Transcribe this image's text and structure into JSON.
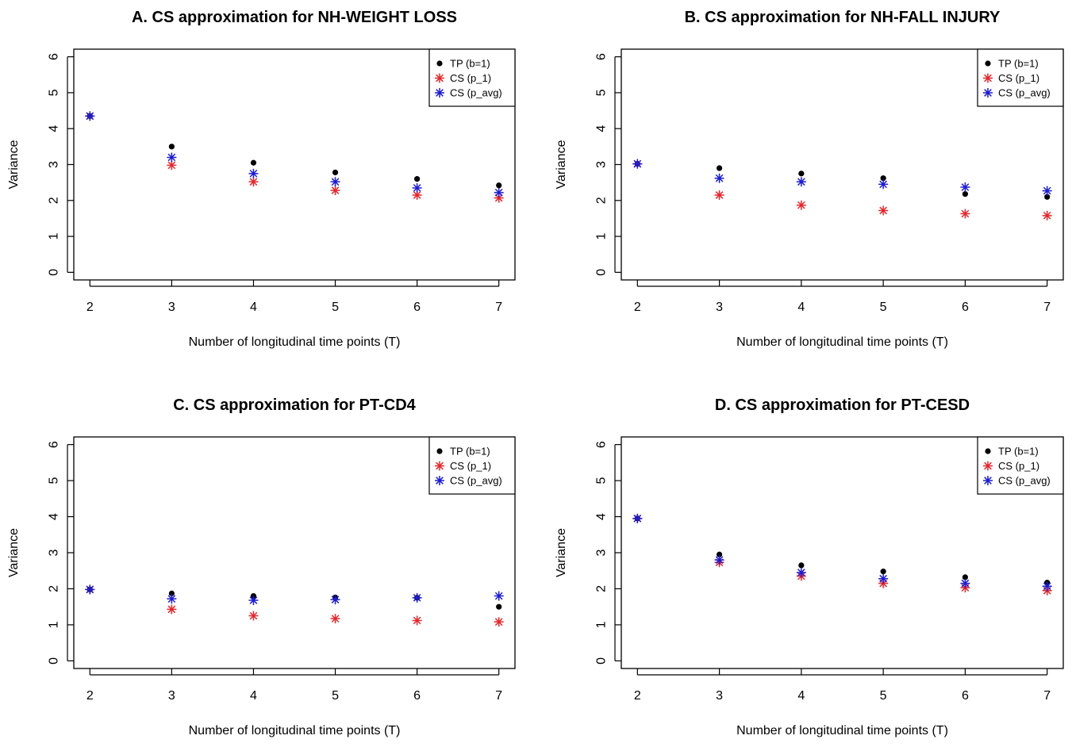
{
  "figure": {
    "colors": {
      "tp": "#000000",
      "cs_p1": "#e8262b",
      "cs_pavg": "#1c1cd6",
      "frame": "#000000"
    }
  },
  "chart_data": [
    {
      "type": "scatter",
      "title": "A. CS approximation for NH-WEIGHT LOSS",
      "xlabel": "Number of longitudinal time points (T)",
      "ylabel": "Variance",
      "x": [
        2,
        3,
        4,
        5,
        6,
        7
      ],
      "xticks": [
        "2",
        "3",
        "4",
        "5",
        "6",
        "7"
      ],
      "yticks": [
        "0",
        "1",
        "2",
        "3",
        "4",
        "5",
        "6"
      ],
      "xlim": [
        2,
        7
      ],
      "ylim": [
        0,
        6
      ],
      "grid": false,
      "legend_position": "top-right",
      "series": [
        {
          "name": "TP (b=1)",
          "marker": "dot",
          "values": [
            4.35,
            3.5,
            3.05,
            2.78,
            2.6,
            2.42
          ]
        },
        {
          "name": "CS (p_1)",
          "marker": "asterisk",
          "values": [
            4.35,
            2.98,
            2.52,
            2.28,
            2.15,
            2.07
          ]
        },
        {
          "name": "CS (p_avg)",
          "marker": "asterisk",
          "values": [
            4.35,
            3.2,
            2.75,
            2.52,
            2.35,
            2.22
          ]
        }
      ]
    },
    {
      "type": "scatter",
      "title": "B. CS approximation for NH-FALL INJURY",
      "xlabel": "Number of longitudinal time points (T)",
      "ylabel": "Variance",
      "x": [
        2,
        3,
        4,
        5,
        6,
        7
      ],
      "xticks": [
        "2",
        "3",
        "4",
        "5",
        "6",
        "7"
      ],
      "yticks": [
        "0",
        "1",
        "2",
        "3",
        "4",
        "5",
        "6"
      ],
      "xlim": [
        2,
        7
      ],
      "ylim": [
        0,
        6
      ],
      "grid": false,
      "legend_position": "top-right",
      "series": [
        {
          "name": "TP (b=1)",
          "marker": "dot",
          "values": [
            3.02,
            2.9,
            2.75,
            2.62,
            2.18,
            2.1
          ]
        },
        {
          "name": "CS (p_1)",
          "marker": "asterisk",
          "values": [
            3.02,
            2.15,
            1.87,
            1.72,
            1.63,
            1.58
          ]
        },
        {
          "name": "CS (p_avg)",
          "marker": "asterisk",
          "values": [
            3.02,
            2.62,
            2.52,
            2.45,
            2.37,
            2.27
          ]
        }
      ]
    },
    {
      "type": "scatter",
      "title": "C. CS approximation for PT-CD4",
      "xlabel": "Number of longitudinal time points (T)",
      "ylabel": "Variance",
      "x": [
        2,
        3,
        4,
        5,
        6,
        7
      ],
      "xticks": [
        "2",
        "3",
        "4",
        "5",
        "6",
        "7"
      ],
      "yticks": [
        "0",
        "1",
        "2",
        "3",
        "4",
        "5",
        "6"
      ],
      "xlim": [
        2,
        7
      ],
      "ylim": [
        0,
        6
      ],
      "grid": false,
      "legend_position": "top-right",
      "series": [
        {
          "name": "TP (b=1)",
          "marker": "dot",
          "values": [
            1.98,
            1.87,
            1.8,
            1.76,
            1.75,
            1.5
          ]
        },
        {
          "name": "CS (p_1)",
          "marker": "asterisk",
          "values": [
            1.98,
            1.43,
            1.25,
            1.17,
            1.12,
            1.08
          ]
        },
        {
          "name": "CS (p_avg)",
          "marker": "asterisk",
          "values": [
            1.98,
            1.72,
            1.68,
            1.7,
            1.75,
            1.8
          ]
        }
      ]
    },
    {
      "type": "scatter",
      "title": "D. CS approximation for PT-CESD",
      "xlabel": "Number of longitudinal time points (T)",
      "ylabel": "Variance",
      "x": [
        2,
        3,
        4,
        5,
        6,
        7
      ],
      "xticks": [
        "2",
        "3",
        "4",
        "5",
        "6",
        "7"
      ],
      "yticks": [
        "0",
        "1",
        "2",
        "3",
        "4",
        "5",
        "6"
      ],
      "xlim": [
        2,
        7
      ],
      "ylim": [
        0,
        6
      ],
      "grid": false,
      "legend_position": "top-right",
      "series": [
        {
          "name": "TP (b=1)",
          "marker": "dot",
          "values": [
            3.95,
            2.95,
            2.65,
            2.48,
            2.32,
            2.17
          ]
        },
        {
          "name": "CS (p_1)",
          "marker": "asterisk",
          "values": [
            3.95,
            2.73,
            2.35,
            2.15,
            2.03,
            1.95
          ]
        },
        {
          "name": "CS (p_avg)",
          "marker": "asterisk",
          "values": [
            3.95,
            2.8,
            2.45,
            2.28,
            2.15,
            2.07
          ]
        }
      ]
    }
  ]
}
